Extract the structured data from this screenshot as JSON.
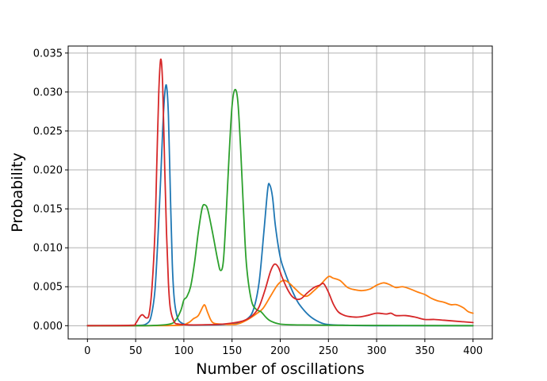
{
  "chart_data": {
    "type": "line",
    "title": "",
    "xlabel": "Number of oscillations",
    "ylabel": "Probability",
    "xlim": [
      -20,
      420
    ],
    "ylim": [
      -0.0017,
      0.0359
    ],
    "grid": true,
    "legend": "none",
    "x_ticks": [
      0,
      50,
      100,
      150,
      200,
      250,
      300,
      350,
      400
    ],
    "x_tick_labels": [
      "0",
      "50",
      "100",
      "150",
      "200",
      "250",
      "300",
      "350",
      "400"
    ],
    "y_ticks": [
      0.0,
      0.005,
      0.01,
      0.015,
      0.02,
      0.025,
      0.03,
      0.035
    ],
    "y_tick_labels": [
      "0.000",
      "0.005",
      "0.010",
      "0.015",
      "0.020",
      "0.025",
      "0.030",
      "0.035"
    ],
    "series": [
      {
        "color": "#1f77b4",
        "points": [
          [
            0,
            0
          ],
          [
            40,
            0
          ],
          [
            55,
            5e-05
          ],
          [
            62,
            0.0003
          ],
          [
            66,
            0.0012
          ],
          [
            70,
            0.0045
          ],
          [
            73,
            0.011
          ],
          [
            76,
            0.019
          ],
          [
            78,
            0.025
          ],
          [
            80,
            0.0295
          ],
          [
            82,
            0.0308
          ],
          [
            84,
            0.027
          ],
          [
            86,
            0.017
          ],
          [
            88,
            0.008
          ],
          [
            90,
            0.0035
          ],
          [
            93,
            0.0012
          ],
          [
            97,
            0.0004
          ],
          [
            105,
            0.0001
          ],
          [
            120,
            0.0001
          ],
          [
            140,
            0.00015
          ],
          [
            155,
            0.0003
          ],
          [
            165,
            0.0008
          ],
          [
            172,
            0.002
          ],
          [
            178,
            0.0055
          ],
          [
            183,
            0.012
          ],
          [
            187,
            0.0175
          ],
          [
            189,
            0.0181
          ],
          [
            192,
            0.0165
          ],
          [
            195,
            0.0128
          ],
          [
            200,
            0.0088
          ],
          [
            205,
            0.0068
          ],
          [
            210,
            0.0052
          ],
          [
            215,
            0.0038
          ],
          [
            220,
            0.0027
          ],
          [
            230,
            0.0013
          ],
          [
            240,
            0.0005
          ],
          [
            250,
            0.00015
          ],
          [
            270,
            5e-05
          ],
          [
            300,
            0
          ],
          [
            400,
            0
          ]
        ]
      },
      {
        "color": "#ff7f0e",
        "points": [
          [
            0,
            0
          ],
          [
            60,
            0
          ],
          [
            95,
            5e-05
          ],
          [
            105,
            0.0004
          ],
          [
            110,
            0.0009
          ],
          [
            115,
            0.0013
          ],
          [
            120,
            0.0025
          ],
          [
            122,
            0.0026
          ],
          [
            125,
            0.0016
          ],
          [
            130,
            0.0004
          ],
          [
            140,
            0.0002
          ],
          [
            155,
            0.0002
          ],
          [
            165,
            0.0007
          ],
          [
            175,
            0.0015
          ],
          [
            182,
            0.0022
          ],
          [
            190,
            0.0038
          ],
          [
            197,
            0.0052
          ],
          [
            203,
            0.0058
          ],
          [
            208,
            0.0056
          ],
          [
            215,
            0.0048
          ],
          [
            222,
            0.004
          ],
          [
            228,
            0.0038
          ],
          [
            235,
            0.0045
          ],
          [
            242,
            0.0053
          ],
          [
            250,
            0.0063
          ],
          [
            255,
            0.0061
          ],
          [
            262,
            0.0058
          ],
          [
            270,
            0.0049
          ],
          [
            278,
            0.0046
          ],
          [
            285,
            0.0045
          ],
          [
            293,
            0.0047
          ],
          [
            300,
            0.0052
          ],
          [
            307,
            0.0055
          ],
          [
            313,
            0.0053
          ],
          [
            320,
            0.0049
          ],
          [
            327,
            0.005
          ],
          [
            335,
            0.0047
          ],
          [
            343,
            0.0043
          ],
          [
            350,
            0.004
          ],
          [
            357,
            0.0035
          ],
          [
            363,
            0.0032
          ],
          [
            370,
            0.003
          ],
          [
            377,
            0.0027
          ],
          [
            383,
            0.0027
          ],
          [
            390,
            0.0023
          ],
          [
            395,
            0.0018
          ],
          [
            400,
            0.0016
          ]
        ]
      },
      {
        "color": "#2ca02c",
        "points": [
          [
            0,
            0
          ],
          [
            60,
            0
          ],
          [
            85,
            0.0002
          ],
          [
            92,
            0.0008
          ],
          [
            97,
            0.002
          ],
          [
            100,
            0.0033
          ],
          [
            103,
            0.0037
          ],
          [
            107,
            0.005
          ],
          [
            111,
            0.008
          ],
          [
            115,
            0.012
          ],
          [
            119,
            0.0151
          ],
          [
            122,
            0.0155
          ],
          [
            125,
            0.0148
          ],
          [
            130,
            0.0118
          ],
          [
            135,
            0.0085
          ],
          [
            138,
            0.0071
          ],
          [
            141,
            0.0083
          ],
          [
            144,
            0.0145
          ],
          [
            147,
            0.022
          ],
          [
            150,
            0.0282
          ],
          [
            153,
            0.0303
          ],
          [
            156,
            0.0288
          ],
          [
            159,
            0.0225
          ],
          [
            162,
            0.0145
          ],
          [
            165,
            0.0078
          ],
          [
            170,
            0.0033
          ],
          [
            175,
            0.0021
          ],
          [
            180,
            0.0018
          ],
          [
            185,
            0.0011
          ],
          [
            190,
            0.0006
          ],
          [
            200,
            0.0002
          ],
          [
            220,
            0.0001
          ],
          [
            260,
            5e-05
          ],
          [
            300,
            3e-05
          ],
          [
            400,
            0
          ]
        ]
      },
      {
        "color": "#d62728",
        "points": [
          [
            0,
            0
          ],
          [
            45,
            5e-05
          ],
          [
            50,
            0.0003
          ],
          [
            54,
            0.0011
          ],
          [
            57,
            0.0014
          ],
          [
            61,
            0.001
          ],
          [
            64,
            0.0015
          ],
          [
            67,
            0.005
          ],
          [
            70,
            0.012
          ],
          [
            72,
            0.021
          ],
          [
            74,
            0.03
          ],
          [
            76,
            0.0342
          ],
          [
            78,
            0.031
          ],
          [
            80,
            0.021
          ],
          [
            82,
            0.012
          ],
          [
            84,
            0.0055
          ],
          [
            86,
            0.0022
          ],
          [
            90,
            0.0005
          ],
          [
            95,
            0.0002
          ],
          [
            110,
            0.0001
          ],
          [
            140,
            0.0002
          ],
          [
            158,
            0.0005
          ],
          [
            165,
            0.0008
          ],
          [
            172,
            0.0014
          ],
          [
            178,
            0.0024
          ],
          [
            184,
            0.0045
          ],
          [
            190,
            0.007
          ],
          [
            194,
            0.0079
          ],
          [
            198,
            0.0075
          ],
          [
            202,
            0.0062
          ],
          [
            207,
            0.0048
          ],
          [
            212,
            0.0038
          ],
          [
            217,
            0.0034
          ],
          [
            222,
            0.0035
          ],
          [
            228,
            0.0042
          ],
          [
            235,
            0.0049
          ],
          [
            241,
            0.0052
          ],
          [
            245,
            0.0054
          ],
          [
            250,
            0.0043
          ],
          [
            255,
            0.0028
          ],
          [
            260,
            0.0018
          ],
          [
            265,
            0.0014
          ],
          [
            270,
            0.0012
          ],
          [
            280,
            0.0011
          ],
          [
            290,
            0.0013
          ],
          [
            300,
            0.0016
          ],
          [
            310,
            0.0015
          ],
          [
            315,
            0.0016
          ],
          [
            320,
            0.0013
          ],
          [
            330,
            0.0013
          ],
          [
            340,
            0.0011
          ],
          [
            350,
            0.0008
          ],
          [
            360,
            0.0008
          ],
          [
            370,
            0.0007
          ],
          [
            380,
            0.0006
          ],
          [
            390,
            0.0005
          ],
          [
            400,
            0.0004
          ]
        ]
      }
    ]
  }
}
